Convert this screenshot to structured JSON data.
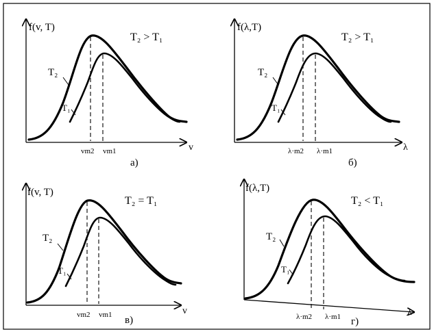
{
  "panels": [
    {
      "id": "a",
      "ylabel": "f(v, T)",
      "xlabel": "v",
      "relation": "T₂ > T₁",
      "curve_labels": [
        "T₂",
        "T₁"
      ],
      "peak_labels": [
        "vm2",
        "vm1"
      ],
      "caption": "а)"
    },
    {
      "id": "b",
      "ylabel": "f(λ,T)",
      "xlabel": "λ",
      "relation": "T₂ > T₁",
      "curve_labels": [
        "T₂",
        "T₁"
      ],
      "peak_labels": [
        "λ·m2",
        "λ·m1"
      ],
      "caption": "б)"
    },
    {
      "id": "v",
      "ylabel": "f(v, T)",
      "xlabel": "v",
      "relation": "T₂ = T₁",
      "curve_labels": [
        "T₂",
        "T₁"
      ],
      "peak_labels": [
        "vm2",
        "vm1"
      ],
      "caption": "в)"
    },
    {
      "id": "g",
      "ylabel": "f(λ,T)",
      "xlabel": "λ",
      "relation": "T₂ < T₁",
      "curve_labels": [
        "T₂",
        "T₁"
      ],
      "peak_labels": [
        "λ·m2",
        "λ·m1"
      ],
      "caption": "г)"
    }
  ]
}
